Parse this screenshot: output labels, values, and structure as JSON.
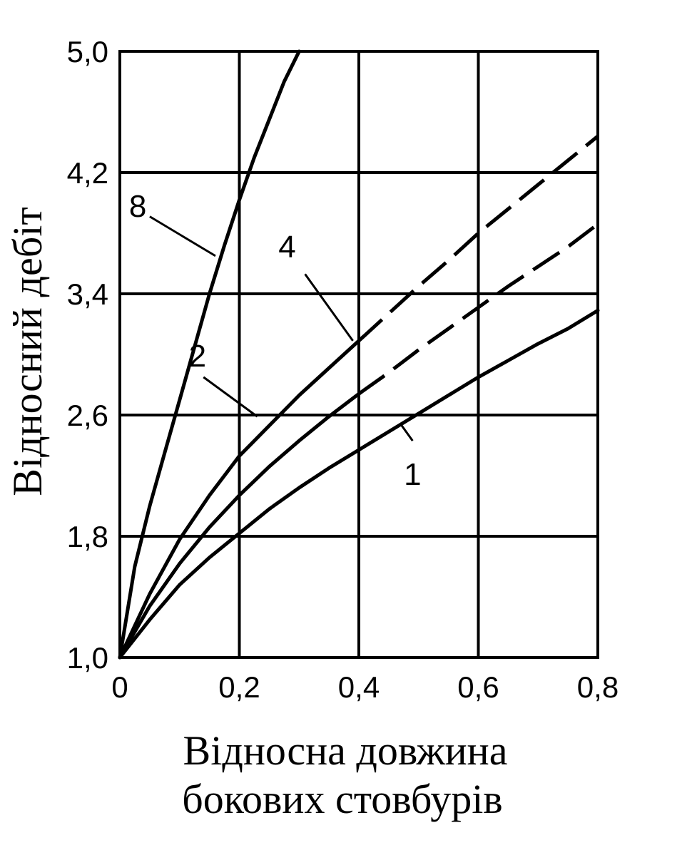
{
  "chart_data": {
    "type": "line",
    "title": "",
    "xlabel": [
      "Відносна довжина",
      "бокових стовбурів"
    ],
    "ylabel": "Відносний дебіт",
    "xlim": [
      0,
      0.8
    ],
    "ylim": [
      1.0,
      5.0
    ],
    "grid": true,
    "x_ticks": [
      "0",
      "0,2",
      "0,4",
      "0,6",
      "0,8"
    ],
    "y_ticks": [
      "1,0",
      "1,8",
      "2,6",
      "3,4",
      "4,2",
      "5,0"
    ],
    "x_tick_values": [
      0,
      0.2,
      0.4,
      0.6,
      0.8
    ],
    "y_tick_values": [
      1.0,
      1.8,
      2.6,
      3.4,
      4.2,
      5.0
    ],
    "series": [
      {
        "name": "1",
        "style": "solid",
        "points": [
          [
            0,
            1.0
          ],
          [
            0.05,
            1.25
          ],
          [
            0.1,
            1.48
          ],
          [
            0.15,
            1.66
          ],
          [
            0.2,
            1.82
          ],
          [
            0.25,
            1.98
          ],
          [
            0.3,
            2.12
          ],
          [
            0.35,
            2.25
          ],
          [
            0.4,
            2.37
          ],
          [
            0.45,
            2.49
          ],
          [
            0.5,
            2.61
          ],
          [
            0.55,
            2.73
          ],
          [
            0.6,
            2.85
          ],
          [
            0.65,
            2.96
          ],
          [
            0.7,
            3.07
          ],
          [
            0.75,
            3.17
          ],
          [
            0.8,
            3.29
          ]
        ]
      },
      {
        "name": "2",
        "style": "solid",
        "points": [
          [
            0,
            1.0
          ],
          [
            0.05,
            1.34
          ],
          [
            0.1,
            1.62
          ],
          [
            0.15,
            1.86
          ],
          [
            0.2,
            2.07
          ],
          [
            0.25,
            2.26
          ],
          [
            0.3,
            2.43
          ],
          [
            0.35,
            2.59
          ],
          [
            0.4,
            2.74
          ]
        ],
        "extension_style": "dashed",
        "extension": [
          [
            0.4,
            2.74
          ],
          [
            0.45,
            2.88
          ],
          [
            0.5,
            3.03
          ],
          [
            0.55,
            3.17
          ],
          [
            0.6,
            3.31
          ],
          [
            0.65,
            3.45
          ],
          [
            0.7,
            3.58
          ],
          [
            0.75,
            3.71
          ],
          [
            0.8,
            3.86
          ]
        ]
      },
      {
        "name": "4",
        "style": "solid",
        "points": [
          [
            0,
            1.0
          ],
          [
            0.05,
            1.42
          ],
          [
            0.1,
            1.78
          ],
          [
            0.15,
            2.07
          ],
          [
            0.2,
            2.33
          ],
          [
            0.25,
            2.53
          ],
          [
            0.3,
            2.73
          ],
          [
            0.35,
            2.91
          ],
          [
            0.4,
            3.09
          ]
        ],
        "extension_style": "dashed",
        "extension": [
          [
            0.4,
            3.09
          ],
          [
            0.45,
            3.27
          ],
          [
            0.5,
            3.45
          ],
          [
            0.55,
            3.62
          ],
          [
            0.6,
            3.8
          ],
          [
            0.65,
            3.96
          ],
          [
            0.7,
            4.12
          ],
          [
            0.75,
            4.28
          ],
          [
            0.8,
            4.44
          ]
        ]
      },
      {
        "name": "8",
        "style": "solid",
        "points": [
          [
            0,
            1.0
          ],
          [
            0.025,
            1.6
          ],
          [
            0.05,
            2.0
          ],
          [
            0.075,
            2.35
          ],
          [
            0.1,
            2.7
          ],
          [
            0.125,
            3.05
          ],
          [
            0.15,
            3.4
          ],
          [
            0.175,
            3.72
          ],
          [
            0.2,
            4.02
          ],
          [
            0.225,
            4.3
          ],
          [
            0.25,
            4.55
          ],
          [
            0.275,
            4.8
          ],
          [
            0.3,
            5.0
          ]
        ]
      }
    ],
    "curve_labels": [
      {
        "text": "8",
        "at": [
          0.03,
          3.98
        ],
        "pointer": [
          [
            0.05,
            3.91
          ],
          [
            0.16,
            3.65
          ]
        ]
      },
      {
        "text": "4",
        "at": [
          0.28,
          3.71
        ],
        "pointer": [
          [
            0.31,
            3.53
          ],
          [
            0.39,
            3.09
          ]
        ]
      },
      {
        "text": "2",
        "at": [
          0.13,
          2.99
        ],
        "pointer": [
          [
            0.14,
            2.85
          ],
          [
            0.23,
            2.59
          ]
        ]
      },
      {
        "text": "1",
        "at": [
          0.49,
          2.21
        ],
        "pointer": [
          [
            0.49,
            2.43
          ],
          [
            0.47,
            2.54
          ]
        ]
      }
    ]
  }
}
